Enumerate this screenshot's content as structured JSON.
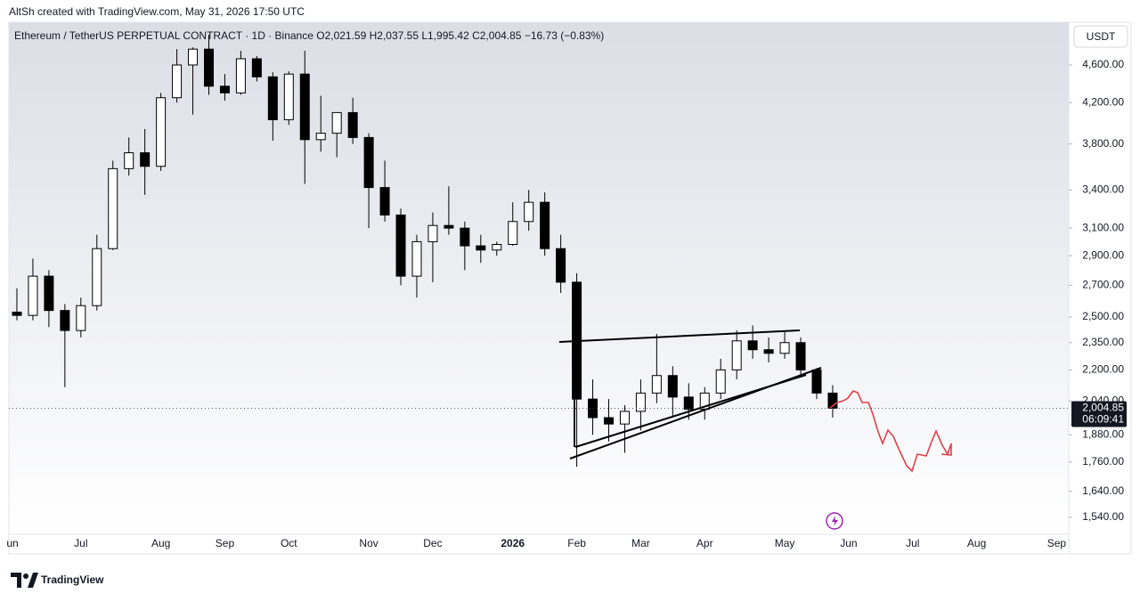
{
  "header": "AltSh created with TradingView.com, May 31, 2026 17:50 UTC",
  "legend": {
    "symbol": "Ethereum / TetherUS PERPETUAL CONTRACT · 1D · Binance",
    "open": "O2,021.59",
    "high": "H2,037.55",
    "low": "L1,995.42",
    "close": "C2,004.85",
    "change": "−16.73 (−0.83%)"
  },
  "currency_button": "USDT",
  "logo": "TradingView",
  "chart_data": {
    "type": "candlestick",
    "log_scale": true,
    "categories": [
      "un",
      null,
      null,
      null,
      "Jul",
      null,
      null,
      null,
      null,
      "Aug",
      null,
      null,
      null,
      "Sep",
      null,
      null,
      null,
      "Oct",
      null,
      null,
      null,
      null,
      "Nov",
      null,
      null,
      null,
      "Dec",
      null,
      null,
      null,
      null,
      "2026",
      null,
      null,
      null,
      "Feb",
      null,
      null,
      null,
      "Mar",
      null,
      null,
      null,
      "Apr",
      null,
      null,
      null,
      null,
      "May",
      null,
      null,
      null,
      "Jun",
      null,
      null,
      null,
      "Jul",
      null,
      null,
      null,
      "Aug",
      null,
      null,
      null,
      null,
      "Sep"
    ],
    "open": [
      2530,
      2510,
      2760,
      2540,
      2420,
      2570,
      2950,
      3580,
      3720,
      3600,
      4250,
      4600,
      4780,
      4370,
      4300,
      4670,
      4470,
      4030,
      4500,
      3840,
      3900,
      4100,
      3860,
      3420,
      3200,
      2760,
      3000,
      3120,
      3100,
      2970,
      2940,
      2980,
      3150,
      3300,
      2950,
      2720,
      2050,
      1960,
      1930,
      1990,
      2080,
      2170,
      2060,
      2000,
      2080,
      2200,
      2360,
      2310,
      2290,
      2350,
      2200,
      2080,
      null,
      null,
      null,
      null,
      null,
      null,
      null,
      null,
      null,
      null,
      null,
      null,
      null,
      null
    ],
    "high": [
      2680,
      2880,
      2800,
      2580,
      2620,
      3050,
      3650,
      3860,
      3940,
      4300,
      4780,
      4800,
      4950,
      4500,
      4760,
      4700,
      4520,
      4530,
      4760,
      4270,
      4100,
      4250,
      3900,
      3650,
      3250,
      3050,
      3220,
      3430,
      3150,
      3050,
      3000,
      3300,
      3400,
      3380,
      3050,
      2780,
      2150,
      2050,
      2020,
      2150,
      2400,
      2220,
      2130,
      2110,
      2260,
      2420,
      2450,
      2380,
      2410,
      2380,
      2210,
      2120,
      null,
      null,
      null,
      null,
      null,
      null,
      null,
      null,
      null,
      null,
      null,
      null,
      null,
      null
    ],
    "low": [
      2480,
      2480,
      2440,
      2110,
      2380,
      2540,
      2940,
      3520,
      3360,
      3560,
      4200,
      4080,
      4280,
      4220,
      4280,
      4420,
      3830,
      3980,
      3450,
      3730,
      3680,
      3800,
      3100,
      3150,
      2700,
      2620,
      2720,
      3050,
      2800,
      2850,
      2900,
      2970,
      3080,
      2900,
      2650,
      1740,
      1880,
      1850,
      1800,
      1900,
      2030,
      1960,
      1950,
      1950,
      2050,
      2150,
      2260,
      2240,
      2260,
      2160,
      2050,
      1960,
      null,
      null,
      null,
      null,
      null,
      null,
      null,
      null,
      null,
      null,
      null,
      null,
      null,
      null
    ],
    "close": [
      2510,
      2760,
      2540,
      2420,
      2570,
      2950,
      3580,
      3720,
      3600,
      4250,
      4600,
      4780,
      4370,
      4300,
      4670,
      4470,
      4030,
      4500,
      3840,
      3900,
      4100,
      3860,
      3420,
      3200,
      2760,
      3000,
      3120,
      3100,
      2970,
      2940,
      2980,
      3150,
      3300,
      2950,
      2720,
      2050,
      1960,
      1930,
      1990,
      2080,
      2170,
      2060,
      2000,
      2080,
      2200,
      2360,
      2310,
      2290,
      2350,
      2200,
      2080,
      2004.85,
      null,
      null,
      null,
      null,
      null,
      null,
      null,
      null,
      null,
      null,
      null,
      null,
      null,
      null
    ],
    "last_price_label": "2,004.85",
    "countdown": "06:09:41",
    "ylim": [
      1478,
      5101
    ],
    "yticks": [
      {
        "value": 1540,
        "label": "1,540.00"
      },
      {
        "value": 1640,
        "label": "1,640.00"
      },
      {
        "value": 1760,
        "label": "1,760.00"
      },
      {
        "value": 1880,
        "label": "1,880.00"
      },
      {
        "value": 2040,
        "label": "2,040.00"
      },
      {
        "value": 2200,
        "label": "2,200.00"
      },
      {
        "value": 2350,
        "label": "2,350.00"
      },
      {
        "value": 2500,
        "label": "2,500.00"
      },
      {
        "value": 2700,
        "label": "2,700.00"
      },
      {
        "value": 2900,
        "label": "2,900.00"
      },
      {
        "value": 3100,
        "label": "3,100.00"
      },
      {
        "value": 3400,
        "label": "3,400.00"
      },
      {
        "value": 3800,
        "label": "3,800.00"
      },
      {
        "value": 4200,
        "label": "4,200.00"
      },
      {
        "value": 4600,
        "label": "4,600.00"
      }
    ],
    "up_color": "#ffffff",
    "down_color": "#000000"
  }
}
